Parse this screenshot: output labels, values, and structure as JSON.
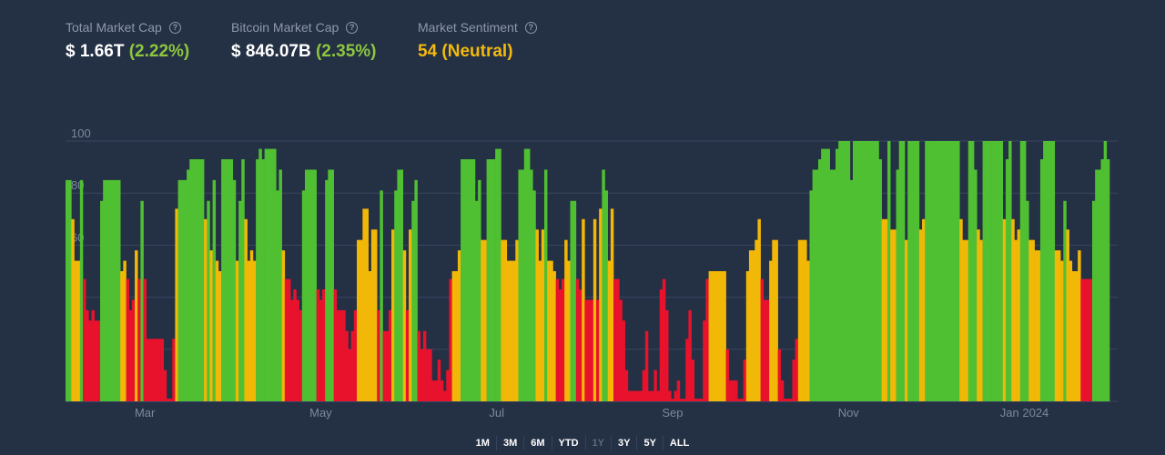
{
  "stats": [
    {
      "label": "Total Market Cap",
      "value": "$ 1.66T",
      "change": "(2.22%)",
      "icon": "question-circle-icon"
    },
    {
      "label": "Bitcoin Market Cap",
      "value": "$ 846.07B",
      "change": "(2.35%)",
      "icon": "question-circle-icon"
    },
    {
      "label": "Market Sentiment",
      "value": "54 (Neutral)",
      "icon": "question-circle-icon"
    }
  ],
  "colors": {
    "background": "#243044",
    "positive": "#8dc63f",
    "neutral": "#f3b90c",
    "grid": "#3a4660",
    "axis_text": "#7d889c"
  },
  "time_ranges": [
    "1M",
    "3M",
    "6M",
    "YTD",
    "1Y",
    "3Y",
    "5Y",
    "ALL"
  ],
  "selected_range": "1Y",
  "chart_data": {
    "type": "bar",
    "ylim": [
      0,
      100
    ],
    "y_ticks_visible": [
      "100",
      "80",
      "60"
    ],
    "grid": true,
    "x_tick_labels": [
      {
        "label": "Mar",
        "index": 27
      },
      {
        "label": "May",
        "index": 88
      },
      {
        "label": "Jul",
        "index": 149
      },
      {
        "label": "Sep",
        "index": 210
      },
      {
        "label": "Nov",
        "index": 271
      },
      {
        "label": "Jan 2024",
        "index": 332
      }
    ],
    "color_bands": [
      {
        "max": 47,
        "color": "#e8122d"
      },
      {
        "max": 74,
        "color": "#f2b807"
      },
      {
        "max": 100,
        "color": "#50c033"
      }
    ],
    "values": [
      85,
      85,
      70,
      54,
      54,
      85,
      47,
      35,
      31,
      35,
      31,
      31,
      77,
      85,
      85,
      85,
      85,
      85,
      85,
      50,
      54,
      47,
      35,
      39,
      58,
      47,
      77,
      47,
      24,
      24,
      24,
      24,
      24,
      24,
      12,
      1,
      1,
      24,
      74,
      85,
      85,
      85,
      89,
      93,
      93,
      93,
      93,
      93,
      70,
      77,
      58,
      85,
      54,
      50,
      93,
      93,
      93,
      93,
      85,
      54,
      77,
      93,
      70,
      54,
      58,
      54,
      93,
      97,
      93,
      97,
      97,
      97,
      97,
      81,
      89,
      58,
      47,
      47,
      39,
      43,
      39,
      35,
      81,
      89,
      89,
      89,
      89,
      43,
      39,
      43,
      85,
      89,
      89,
      43,
      35,
      35,
      35,
      27,
      20,
      27,
      35,
      62,
      62,
      74,
      74,
      50,
      66,
      66,
      35,
      81,
      27,
      27,
      35,
      66,
      81,
      89,
      89,
      58,
      35,
      66,
      77,
      85,
      27,
      20,
      27,
      20,
      20,
      8,
      8,
      16,
      8,
      4,
      12,
      47,
      50,
      50,
      58,
      93,
      93,
      93,
      93,
      93,
      77,
      85,
      62,
      62,
      93,
      93,
      93,
      97,
      97,
      62,
      62,
      54,
      54,
      54,
      62,
      89,
      89,
      97,
      97,
      89,
      81,
      66,
      54,
      66,
      89,
      54,
      54,
      50,
      47,
      43,
      47,
      62,
      54,
      77,
      77,
      47,
      43,
      70,
      39,
      39,
      39,
      70,
      39,
      74,
      89,
      81,
      54,
      74,
      47,
      47,
      39,
      31,
      12,
      4,
      4,
      4,
      4,
      4,
      12,
      27,
      4,
      4,
      12,
      4,
      43,
      47,
      35,
      4,
      1,
      4,
      8,
      1,
      1,
      24,
      35,
      16,
      1,
      1,
      1,
      31,
      47,
      50,
      50,
      50,
      50,
      50,
      50,
      20,
      8,
      8,
      8,
      1,
      1,
      16,
      50,
      58,
      58,
      62,
      70,
      47,
      39,
      39,
      54,
      62,
      62,
      20,
      8,
      1,
      1,
      1,
      16,
      24,
      62,
      62,
      62,
      54,
      81,
      89,
      89,
      93,
      97,
      97,
      97,
      89,
      89,
      97,
      100,
      100,
      100,
      100,
      85,
      100,
      100,
      100,
      100,
      100,
      100,
      100,
      100,
      100,
      93,
      70,
      70,
      100,
      66,
      66,
      89,
      100,
      100,
      62,
      100,
      100,
      100,
      100,
      66,
      70,
      100,
      100,
      100,
      100,
      100,
      100,
      100,
      100,
      100,
      100,
      100,
      100,
      70,
      62,
      62,
      100,
      100,
      89,
      66,
      62,
      100,
      100,
      100,
      100,
      100,
      100,
      100,
      70,
      93,
      100,
      70,
      62,
      66,
      100,
      100,
      77,
      62,
      62,
      58,
      58,
      93,
      100,
      100,
      100,
      100,
      58,
      58,
      54,
      77,
      66,
      54,
      50,
      50,
      58,
      47,
      47,
      47,
      47,
      77,
      89,
      89,
      93,
      100,
      93
    ]
  }
}
